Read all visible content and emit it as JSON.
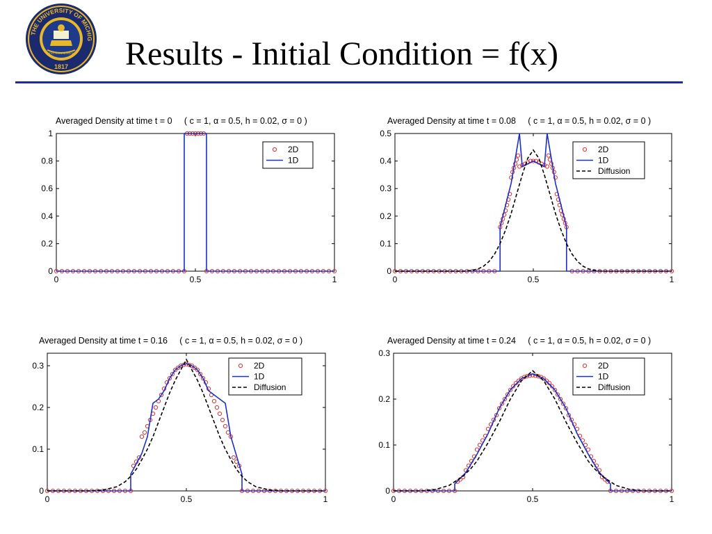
{
  "slide": {
    "title": "Results - Initial Condition = f(x)",
    "logo": {
      "text_top": "THE UNIVERSITY OF MICHIGAN",
      "year": "1817",
      "motto": "ARTES SCIENTIA VERITAS",
      "colors": {
        "ring": "#1b2a6e",
        "gold": "#e8b82a",
        "blue": "#1e3a8a"
      }
    },
    "rule_color": "#1a2b9c"
  },
  "colors": {
    "marker_2d": "#e03030",
    "line_1d": "#1a2fc8",
    "diffusion": "#000000"
  },
  "chart_data": [
    {
      "type": "line",
      "title": "Averaged Density at time t = 0     ( c = 1, α = 0.5, h = 0.02, σ = 0 )",
      "xlim": [
        0,
        1
      ],
      "ylim": [
        0,
        1
      ],
      "xticks": [
        "0",
        "0.5",
        "1"
      ],
      "yticks": [
        "0",
        "0.2",
        "0.4",
        "0.6",
        "0.8",
        "1"
      ],
      "xtick_values": [
        0,
        0.5,
        1
      ],
      "ytick_values": [
        0,
        0.2,
        0.4,
        0.6,
        0.8,
        1
      ],
      "legend": [
        "2D",
        "1D"
      ],
      "legend_position": "top-right",
      "series": [
        {
          "name": "2D",
          "style": "markers",
          "x": [
            0,
            0.02,
            0.04,
            0.06,
            0.08,
            0.1,
            0.12,
            0.14,
            0.16,
            0.18,
            0.2,
            0.22,
            0.24,
            0.26,
            0.28,
            0.3,
            0.32,
            0.34,
            0.36,
            0.38,
            0.4,
            0.42,
            0.44,
            0.46,
            0.47,
            0.48,
            0.49,
            0.5,
            0.51,
            0.52,
            0.53,
            0.54,
            0.56,
            0.58,
            0.6,
            0.62,
            0.64,
            0.66,
            0.68,
            0.7,
            0.72,
            0.74,
            0.76,
            0.78,
            0.8,
            0.82,
            0.84,
            0.86,
            0.88,
            0.9,
            0.92,
            0.94,
            0.96,
            0.98,
            1
          ],
          "y": [
            0,
            0,
            0,
            0,
            0,
            0,
            0,
            0,
            0,
            0,
            0,
            0,
            0,
            0,
            0,
            0,
            0,
            0,
            0,
            0,
            0,
            0,
            0,
            0,
            1,
            1,
            1,
            1,
            1,
            1,
            1,
            0,
            0,
            0,
            0,
            0,
            0,
            0,
            0,
            0,
            0,
            0,
            0,
            0,
            0,
            0,
            0,
            0,
            0,
            0,
            0,
            0,
            0,
            0,
            0
          ]
        },
        {
          "name": "1D",
          "style": "line",
          "x": [
            0,
            0.46,
            0.46,
            0.54,
            0.54,
            1
          ],
          "y": [
            0,
            0,
            1,
            1,
            0,
            0
          ]
        }
      ]
    },
    {
      "type": "line",
      "title": "Averaged Density at time t = 0.08     ( c = 1, α = 0.5, h = 0.02, σ = 0 )",
      "xlim": [
        0,
        1
      ],
      "ylim": [
        0,
        0.5
      ],
      "xticks": [
        "0",
        "0.5",
        "1"
      ],
      "yticks": [
        "0",
        "0.1",
        "0.2",
        "0.3",
        "0.4",
        "0.5"
      ],
      "xtick_values": [
        0,
        0.5,
        1
      ],
      "ytick_values": [
        0,
        0.1,
        0.2,
        0.3,
        0.4,
        0.5
      ],
      "legend": [
        "2D",
        "1D",
        "Diffusion"
      ],
      "legend_position": "top-right",
      "series": [
        {
          "name": "2D",
          "style": "markers",
          "x": [
            0,
            0.02,
            0.04,
            0.06,
            0.08,
            0.1,
            0.12,
            0.14,
            0.16,
            0.18,
            0.2,
            0.22,
            0.24,
            0.26,
            0.28,
            0.3,
            0.32,
            0.34,
            0.36,
            0.38,
            0.385,
            0.39,
            0.395,
            0.4,
            0.405,
            0.41,
            0.415,
            0.42,
            0.425,
            0.43,
            0.435,
            0.44,
            0.445,
            0.45,
            0.46,
            0.47,
            0.48,
            0.49,
            0.5,
            0.51,
            0.52,
            0.53,
            0.54,
            0.55,
            0.555,
            0.56,
            0.565,
            0.57,
            0.575,
            0.58,
            0.585,
            0.59,
            0.595,
            0.6,
            0.605,
            0.61,
            0.615,
            0.62,
            0.64,
            0.66,
            0.68,
            0.7,
            0.72,
            0.74,
            0.76,
            0.78,
            0.8,
            0.82,
            0.84,
            0.86,
            0.88,
            0.9,
            0.92,
            0.94,
            0.96,
            0.98,
            1
          ],
          "y": [
            0,
            0,
            0,
            0,
            0,
            0,
            0,
            0,
            0,
            0,
            0,
            0,
            0,
            0,
            0,
            0,
            0,
            0,
            0,
            0.16,
            0.175,
            0.19,
            0.205,
            0.22,
            0.24,
            0.26,
            0.28,
            0.34,
            0.36,
            0.375,
            0.39,
            0.405,
            0.42,
            0.38,
            0.385,
            0.39,
            0.395,
            0.4,
            0.4,
            0.4,
            0.395,
            0.39,
            0.385,
            0.38,
            0.42,
            0.405,
            0.39,
            0.375,
            0.36,
            0.34,
            0.28,
            0.26,
            0.24,
            0.22,
            0.205,
            0.19,
            0.175,
            0.16,
            0,
            0,
            0,
            0,
            0,
            0,
            0,
            0,
            0,
            0,
            0,
            0,
            0,
            0,
            0,
            0,
            0,
            0,
            0
          ]
        },
        {
          "name": "1D",
          "style": "line",
          "x": [
            0,
            0.38,
            0.38,
            0.42,
            0.45,
            0.46,
            0.5,
            0.54,
            0.55,
            0.58,
            0.62,
            0.62,
            1
          ],
          "y": [
            0,
            0,
            0.16,
            0.32,
            0.5,
            0.38,
            0.4,
            0.38,
            0.5,
            0.32,
            0.16,
            0,
            0
          ]
        },
        {
          "name": "Diffusion",
          "style": "dashed",
          "x": [
            0,
            0.25,
            0.28,
            0.3,
            0.32,
            0.34,
            0.36,
            0.38,
            0.4,
            0.42,
            0.44,
            0.46,
            0.48,
            0.5,
            0.52,
            0.54,
            0.56,
            0.58,
            0.6,
            0.62,
            0.64,
            0.66,
            0.68,
            0.7,
            0.72,
            0.75,
            1
          ],
          "y": [
            0,
            0,
            0.003,
            0.008,
            0.018,
            0.035,
            0.062,
            0.1,
            0.15,
            0.21,
            0.28,
            0.35,
            0.41,
            0.44,
            0.41,
            0.35,
            0.28,
            0.21,
            0.15,
            0.1,
            0.062,
            0.035,
            0.018,
            0.008,
            0.003,
            0,
            0
          ]
        }
      ]
    },
    {
      "type": "line",
      "title": "Averaged Density at time t = 0.16     ( c = 1, α = 0.5, h = 0.02, σ = 0 )",
      "xlim": [
        0,
        1
      ],
      "ylim": [
        0,
        0.33
      ],
      "xticks": [
        "0",
        "0.5",
        "1"
      ],
      "yticks": [
        "0",
        "0.1",
        "0.2",
        "0.3"
      ],
      "xtick_values": [
        0,
        0.5,
        1
      ],
      "ytick_values": [
        0,
        0.1,
        0.2,
        0.3
      ],
      "legend": [
        "2D",
        "1D",
        "Diffusion"
      ],
      "legend_position": "top-right",
      "series": [
        {
          "name": "2D",
          "style": "markers",
          "x": [
            0,
            0.02,
            0.04,
            0.06,
            0.08,
            0.1,
            0.12,
            0.14,
            0.16,
            0.18,
            0.2,
            0.22,
            0.24,
            0.26,
            0.28,
            0.3,
            0.31,
            0.32,
            0.33,
            0.34,
            0.35,
            0.36,
            0.37,
            0.38,
            0.39,
            0.4,
            0.41,
            0.42,
            0.43,
            0.44,
            0.45,
            0.46,
            0.47,
            0.48,
            0.49,
            0.5,
            0.51,
            0.52,
            0.53,
            0.54,
            0.55,
            0.56,
            0.57,
            0.58,
            0.59,
            0.6,
            0.61,
            0.62,
            0.63,
            0.64,
            0.65,
            0.66,
            0.67,
            0.68,
            0.69,
            0.7,
            0.72,
            0.74,
            0.76,
            0.78,
            0.8,
            0.82,
            0.84,
            0.86,
            0.88,
            0.9,
            0.92,
            0.94,
            0.96,
            0.98,
            1
          ],
          "y": [
            0,
            0,
            0,
            0,
            0,
            0,
            0,
            0,
            0,
            0,
            0,
            0,
            0,
            0,
            0,
            0,
            0.06,
            0.07,
            0.08,
            0.13,
            0.14,
            0.155,
            0.17,
            0.185,
            0.2,
            0.215,
            0.23,
            0.245,
            0.26,
            0.27,
            0.28,
            0.29,
            0.295,
            0.3,
            0.302,
            0.304,
            0.302,
            0.3,
            0.295,
            0.29,
            0.28,
            0.27,
            0.26,
            0.245,
            0.23,
            0.215,
            0.2,
            0.185,
            0.17,
            0.155,
            0.14,
            0.13,
            0.08,
            0.07,
            0.06,
            0,
            0,
            0,
            0,
            0,
            0,
            0,
            0,
            0,
            0,
            0,
            0,
            0,
            0,
            0,
            0
          ]
        },
        {
          "name": "1D",
          "style": "line",
          "x": [
            0,
            0.3,
            0.3,
            0.34,
            0.36,
            0.38,
            0.4,
            0.42,
            0.44,
            0.46,
            0.48,
            0.5,
            0.52,
            0.54,
            0.56,
            0.58,
            0.62,
            0.64,
            0.66,
            0.7,
            0.7,
            1
          ],
          "y": [
            0,
            0,
            0.04,
            0.09,
            0.13,
            0.21,
            0.22,
            0.24,
            0.27,
            0.29,
            0.3,
            0.305,
            0.3,
            0.29,
            0.27,
            0.24,
            0.22,
            0.21,
            0.13,
            0.04,
            0,
            0
          ]
        },
        {
          "name": "Diffusion",
          "style": "dashed",
          "x": [
            0,
            0.15,
            0.2,
            0.25,
            0.28,
            0.3,
            0.32,
            0.34,
            0.36,
            0.38,
            0.4,
            0.42,
            0.44,
            0.46,
            0.48,
            0.5,
            0.52,
            0.54,
            0.56,
            0.58,
            0.6,
            0.62,
            0.64,
            0.66,
            0.68,
            0.7,
            0.72,
            0.75,
            0.8,
            0.85,
            1
          ],
          "y": [
            0,
            0,
            0.002,
            0.01,
            0.022,
            0.035,
            0.052,
            0.075,
            0.1,
            0.13,
            0.165,
            0.2,
            0.235,
            0.265,
            0.29,
            0.315,
            0.29,
            0.265,
            0.235,
            0.2,
            0.165,
            0.13,
            0.1,
            0.075,
            0.052,
            0.035,
            0.022,
            0.01,
            0.002,
            0,
            0
          ]
        }
      ]
    },
    {
      "type": "line",
      "title": "Averaged Density at time t = 0.24     ( c = 1, α = 0.5, h = 0.02, σ = 0 )",
      "xlim": [
        0,
        1
      ],
      "ylim": [
        0,
        0.3
      ],
      "xticks": [
        "0",
        "0.5",
        "1"
      ],
      "yticks": [
        "0",
        "0.1",
        "0.2",
        "0.3"
      ],
      "xtick_values": [
        0,
        0.5,
        1
      ],
      "ytick_values": [
        0,
        0.1,
        0.2,
        0.3
      ],
      "legend": [
        "2D",
        "1D",
        "Diffusion"
      ],
      "legend_position": "top-right",
      "series": [
        {
          "name": "2D",
          "style": "markers",
          "x": [
            0,
            0.02,
            0.04,
            0.06,
            0.08,
            0.1,
            0.12,
            0.14,
            0.16,
            0.18,
            0.2,
            0.22,
            0.23,
            0.24,
            0.25,
            0.26,
            0.27,
            0.28,
            0.29,
            0.3,
            0.31,
            0.32,
            0.33,
            0.34,
            0.35,
            0.36,
            0.37,
            0.38,
            0.39,
            0.4,
            0.41,
            0.42,
            0.43,
            0.44,
            0.45,
            0.46,
            0.47,
            0.48,
            0.49,
            0.5,
            0.51,
            0.52,
            0.53,
            0.54,
            0.55,
            0.56,
            0.57,
            0.58,
            0.59,
            0.6,
            0.61,
            0.62,
            0.63,
            0.64,
            0.65,
            0.66,
            0.67,
            0.68,
            0.69,
            0.7,
            0.71,
            0.72,
            0.73,
            0.74,
            0.75,
            0.76,
            0.77,
            0.78,
            0.8,
            0.82,
            0.84,
            0.86,
            0.88,
            0.9,
            0.92,
            0.94,
            0.96,
            0.98,
            1
          ],
          "y": [
            0,
            0,
            0,
            0,
            0,
            0,
            0,
            0,
            0,
            0,
            0,
            0,
            0.02,
            0.025,
            0.03,
            0.045,
            0.055,
            0.065,
            0.075,
            0.09,
            0.1,
            0.11,
            0.12,
            0.135,
            0.145,
            0.155,
            0.165,
            0.18,
            0.19,
            0.2,
            0.21,
            0.22,
            0.228,
            0.235,
            0.24,
            0.245,
            0.248,
            0.25,
            0.251,
            0.252,
            0.251,
            0.25,
            0.248,
            0.245,
            0.24,
            0.235,
            0.228,
            0.22,
            0.21,
            0.2,
            0.19,
            0.18,
            0.165,
            0.155,
            0.145,
            0.135,
            0.12,
            0.11,
            0.1,
            0.09,
            0.075,
            0.065,
            0.055,
            0.045,
            0.03,
            0.025,
            0.02,
            0,
            0,
            0,
            0,
            0,
            0,
            0,
            0,
            0,
            0,
            0,
            0
          ]
        },
        {
          "name": "1D",
          "style": "line",
          "x": [
            0,
            0.22,
            0.22,
            0.26,
            0.3,
            0.34,
            0.38,
            0.42,
            0.46,
            0.5,
            0.54,
            0.58,
            0.62,
            0.66,
            0.7,
            0.74,
            0.78,
            0.78,
            1
          ],
          "y": [
            0,
            0,
            0.015,
            0.04,
            0.08,
            0.125,
            0.18,
            0.22,
            0.245,
            0.255,
            0.245,
            0.22,
            0.18,
            0.125,
            0.08,
            0.04,
            0.015,
            0,
            0
          ]
        },
        {
          "name": "Diffusion",
          "style": "dashed",
          "x": [
            0,
            0.1,
            0.15,
            0.2,
            0.25,
            0.28,
            0.3,
            0.34,
            0.38,
            0.42,
            0.46,
            0.5,
            0.54,
            0.58,
            0.62,
            0.66,
            0.7,
            0.72,
            0.75,
            0.8,
            0.85,
            0.9,
            1
          ],
          "y": [
            0,
            0,
            0.003,
            0.012,
            0.032,
            0.05,
            0.065,
            0.105,
            0.15,
            0.2,
            0.24,
            0.262,
            0.24,
            0.2,
            0.15,
            0.105,
            0.065,
            0.05,
            0.032,
            0.012,
            0.003,
            0,
            0
          ]
        }
      ]
    }
  ]
}
